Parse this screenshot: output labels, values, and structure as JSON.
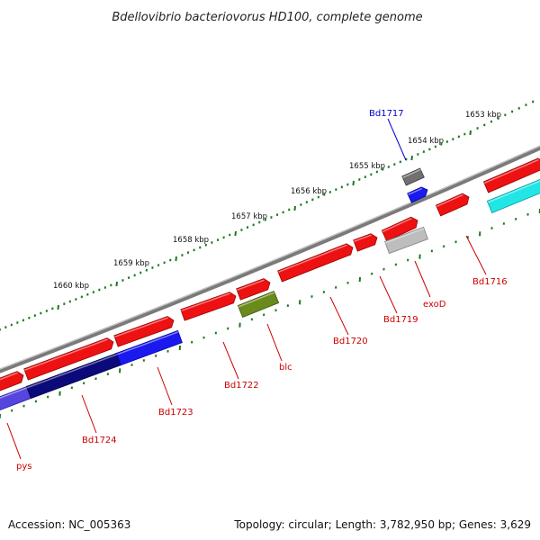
{
  "title": "Bdellovibrio bacteriovorus HD100, complete genome",
  "footer": {
    "accession": "Accession: NC_005363",
    "topology": "Topology: circular; Length: 3,782,950 bp; Genes: 3,629"
  },
  "colors": {
    "backbone": "#888888",
    "tick": "#1b7a1b",
    "gene_forward": "#ee1111",
    "label_red": "#cc0000",
    "label_blue": "#0000cc"
  },
  "kbp_ticks": [
    "1653 kbp",
    "1654 kbp",
    "1655 kbp",
    "1656 kbp",
    "1657 kbp",
    "1658 kbp",
    "1659 kbp",
    "1660 kbp"
  ],
  "gene_labels": [
    {
      "name": "Bd1717",
      "color": "#0000cc"
    },
    {
      "name": "Bd1716",
      "color": "#cc0000"
    },
    {
      "name": "exoD",
      "color": "#cc0000"
    },
    {
      "name": "Bd1719",
      "color": "#cc0000"
    },
    {
      "name": "Bd1720",
      "color": "#cc0000"
    },
    {
      "name": "blc",
      "color": "#cc0000"
    },
    {
      "name": "Bd1722",
      "color": "#cc0000"
    },
    {
      "name": "Bd1723",
      "color": "#cc0000"
    },
    {
      "name": "Bd1724",
      "color": "#cc0000"
    },
    {
      "name": "pys",
      "color": "#cc0000"
    }
  ]
}
